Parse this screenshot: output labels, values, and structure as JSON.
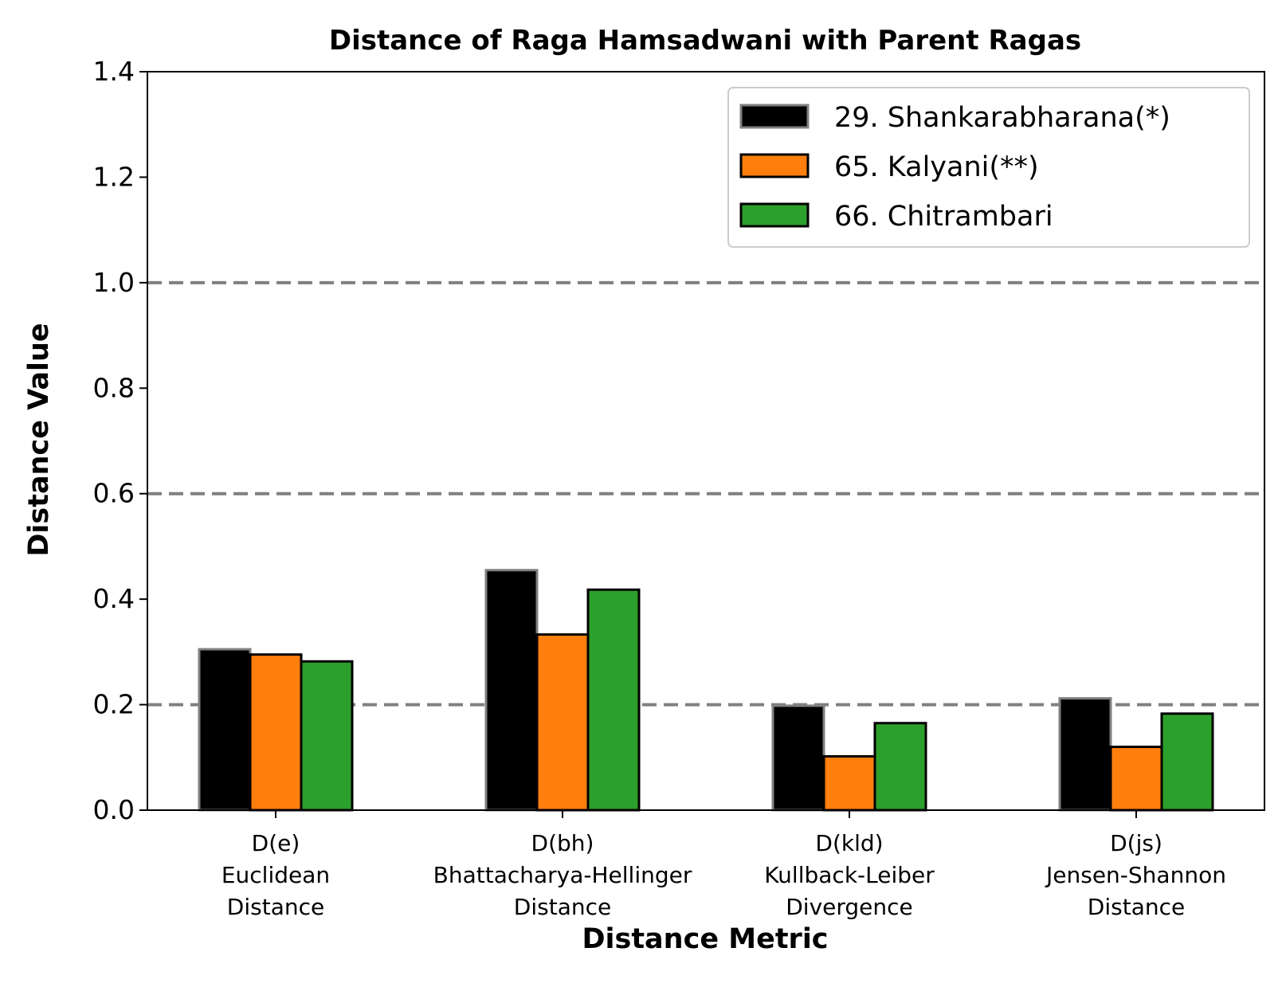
{
  "chart_data": {
    "type": "bar",
    "title": "Distance of Raga Hamsadwani with Parent Ragas",
    "xlabel": "Distance Metric",
    "ylabel": "Distance Value",
    "ylim": [
      0,
      1.4
    ],
    "yticks": [
      "0.0",
      "0.2",
      "0.4",
      "0.6",
      "0.8",
      "1.0",
      "1.2",
      "1.4"
    ],
    "reference_lines": [
      0.2,
      0.6,
      1.0
    ],
    "categories": [
      [
        "D(e)",
        "Euclidean",
        "Distance"
      ],
      [
        "D(bh)",
        "Bhattacharya-Hellinger",
        "Distance"
      ],
      [
        "D(kld)",
        "Kullback-Leiber",
        "Divergence"
      ],
      [
        "D(js)",
        "Jensen-Shannon",
        "Distance"
      ]
    ],
    "series": [
      {
        "name": "29. Shankarabharana(*)",
        "color": "#000000",
        "edge": "#808080",
        "values": [
          0.305,
          0.455,
          0.198,
          0.212
        ]
      },
      {
        "name": "65. Kalyani(**)",
        "color": "#ff7f0e",
        "edge": "#000000",
        "values": [
          0.295,
          0.333,
          0.102,
          0.12
        ]
      },
      {
        "name": "66. Chitrambari",
        "color": "#2ca02c",
        "edge": "#000000",
        "values": [
          0.282,
          0.418,
          0.165,
          0.183
        ]
      }
    ],
    "legend_position": "top-right",
    "grid": "dashed horizontal reference lines"
  }
}
